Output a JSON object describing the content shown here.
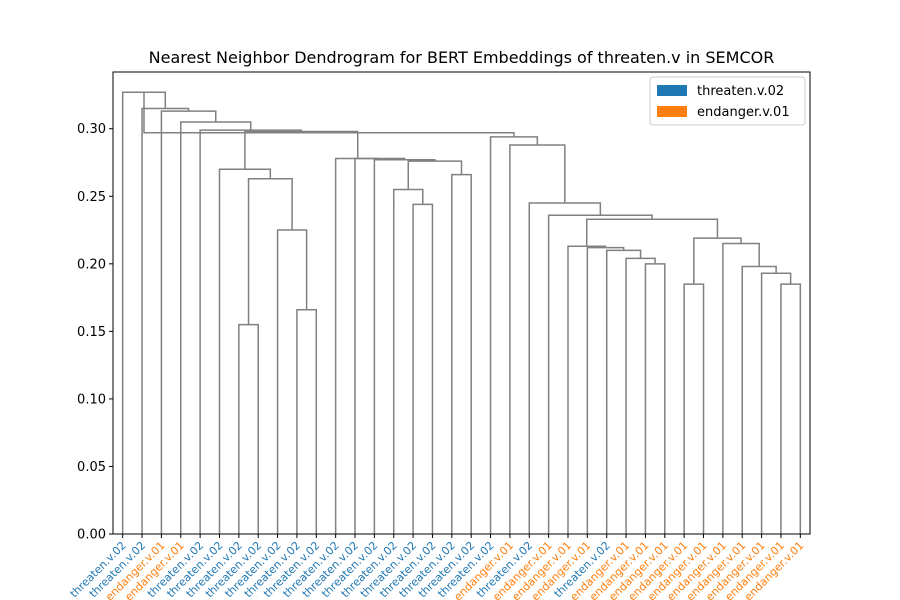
{
  "chart_data": {
    "type": "dendrogram",
    "title": "Nearest Neighbor Dendrogram for BERT Embeddings of threaten.v in SEMCOR",
    "xlabel": "",
    "ylabel": "",
    "ylim": [
      0,
      0.342
    ],
    "yticks": [
      "0.00",
      "0.05",
      "0.10",
      "0.15",
      "0.20",
      "0.25",
      "0.30"
    ],
    "ytick_values": [
      0.0,
      0.05,
      0.1,
      0.15,
      0.2,
      0.25,
      0.3
    ],
    "link_color": "#808080",
    "legend": {
      "placement": "top-right",
      "items": [
        {
          "label": "threaten.v.02",
          "color": "#1f77b4"
        },
        {
          "label": "endanger.v.01",
          "color": "#ff7f0e"
        }
      ]
    },
    "leaves": [
      {
        "label": "threaten.v.02",
        "sense": 0
      },
      {
        "label": "threaten.v.02",
        "sense": 0
      },
      {
        "label": "endanger.v.01",
        "sense": 1
      },
      {
        "label": "endanger.v.01",
        "sense": 1
      },
      {
        "label": "threaten.v.02",
        "sense": 0
      },
      {
        "label": "threaten.v.02",
        "sense": 0
      },
      {
        "label": "threaten.v.02",
        "sense": 0
      },
      {
        "label": "threaten.v.02",
        "sense": 0
      },
      {
        "label": "threaten.v.02",
        "sense": 0
      },
      {
        "label": "threaten.v.02",
        "sense": 0
      },
      {
        "label": "threaten.v.02",
        "sense": 0
      },
      {
        "label": "threaten.v.02",
        "sense": 0
      },
      {
        "label": "threaten.v.02",
        "sense": 0
      },
      {
        "label": "threaten.v.02",
        "sense": 0
      },
      {
        "label": "threaten.v.02",
        "sense": 0
      },
      {
        "label": "threaten.v.02",
        "sense": 0
      },
      {
        "label": "threaten.v.02",
        "sense": 0
      },
      {
        "label": "threaten.v.02",
        "sense": 0
      },
      {
        "label": "threaten.v.02",
        "sense": 0
      },
      {
        "label": "threaten.v.02",
        "sense": 0
      },
      {
        "label": "endanger.v.01",
        "sense": 1
      },
      {
        "label": "threaten.v.02",
        "sense": 0
      },
      {
        "label": "endanger.v.01",
        "sense": 1
      },
      {
        "label": "endanger.v.01",
        "sense": 1
      },
      {
        "label": "endanger.v.01",
        "sense": 1
      },
      {
        "label": "threaten.v.02",
        "sense": 0
      },
      {
        "label": "endanger.v.01",
        "sense": 1
      },
      {
        "label": "endanger.v.01",
        "sense": 1
      },
      {
        "label": "endanger.v.01",
        "sense": 1
      },
      {
        "label": "endanger.v.01",
        "sense": 1
      },
      {
        "label": "endanger.v.01",
        "sense": 1
      },
      {
        "label": "endanger.v.01",
        "sense": 1
      },
      {
        "label": "endanger.v.01",
        "sense": 1
      },
      {
        "label": "endanger.v.01",
        "sense": 1
      },
      {
        "label": "endanger.v.01",
        "sense": 1
      },
      {
        "label": "endanger.v.01",
        "sense": 1
      }
    ],
    "merges": [
      [
        6,
        7,
        0.155
      ],
      [
        9,
        10,
        0.166
      ],
      [
        8,
        37,
        0.225
      ],
      [
        36,
        38,
        0.263
      ],
      [
        5,
        39,
        0.27
      ],
      [
        15,
        16,
        0.244
      ],
      [
        14,
        41,
        0.255
      ],
      [
        17,
        18,
        0.266
      ],
      [
        42,
        43,
        0.276
      ],
      [
        13,
        44,
        0.277
      ],
      [
        12,
        45,
        0.278
      ],
      [
        11,
        46,
        0.278
      ],
      [
        40,
        47,
        0.298
      ],
      [
        4,
        48,
        0.299
      ],
      [
        3,
        49,
        0.305
      ],
      [
        2,
        50,
        0.313
      ],
      [
        1,
        51,
        0.315
      ],
      [
        0,
        52,
        0.327
      ],
      [
        27,
        28,
        0.2
      ],
      [
        26,
        54,
        0.204
      ],
      [
        25,
        55,
        0.21
      ],
      [
        24,
        56,
        0.212
      ],
      [
        23,
        57,
        0.213
      ],
      [
        29,
        30,
        0.185
      ],
      [
        34,
        35,
        0.185
      ],
      [
        33,
        60,
        0.193
      ],
      [
        32,
        61,
        0.198
      ],
      [
        31,
        62,
        0.215
      ],
      [
        59,
        63,
        0.219
      ],
      [
        58,
        64,
        0.233
      ],
      [
        22,
        65,
        0.236
      ],
      [
        21,
        66,
        0.245
      ],
      [
        20,
        67,
        0.288
      ],
      [
        19,
        68,
        0.294
      ],
      [
        53,
        69,
        0.297
      ]
    ]
  }
}
